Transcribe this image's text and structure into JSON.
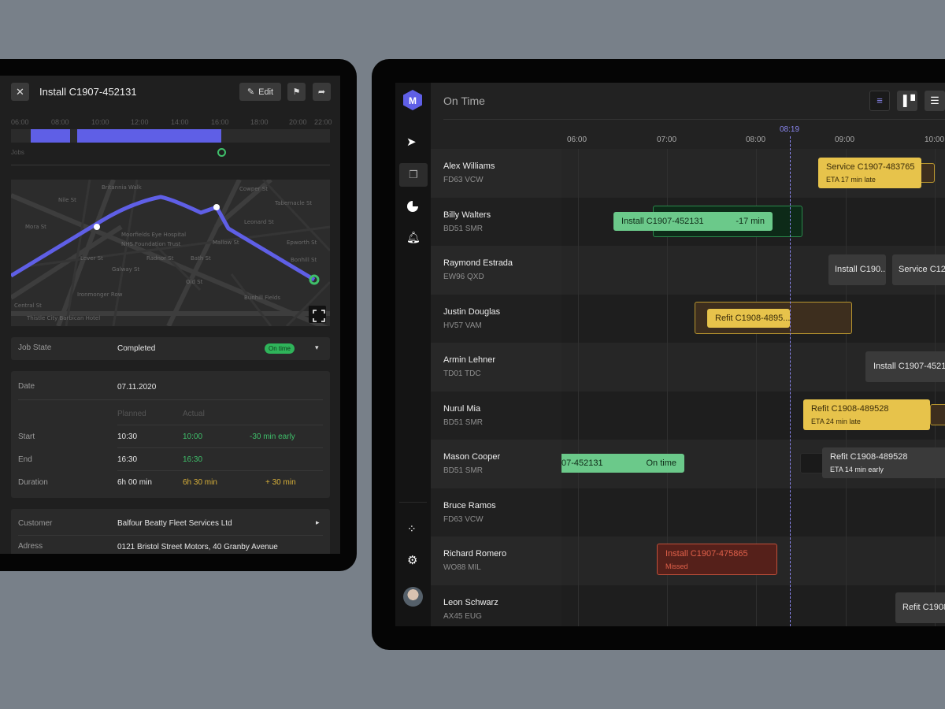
{
  "detail": {
    "title": "Install C1907-452131",
    "edit_label": "Edit",
    "timeline_ticks": [
      "06:00",
      "08:00",
      "10:00",
      "12:00",
      "14:00",
      "16:00",
      "18:00",
      "20:00",
      "22:00"
    ],
    "jobs_label": "Jobs",
    "map_streets": [
      "Britannia Walk",
      "Nile St",
      "Moorfields Eye Hospital",
      "NHS Foundation Trust",
      "Lever St",
      "Galway St",
      "Radnor St",
      "Bath St",
      "Old St",
      "Mallow St",
      "Leonard St",
      "Cowper St",
      "Tabernacle St",
      "Epworth St",
      "Bunhill Fields",
      "Bonhill St",
      "Ironmonger Row",
      "Thistle City Barbican Hotel",
      "Central St",
      "Mora St"
    ],
    "job_state": {
      "label": "Job State",
      "value": "Completed",
      "badge": "On time"
    },
    "date": {
      "label": "Date",
      "value": "07.11.2020"
    },
    "cols": {
      "planned": "Planned",
      "actual": "Actual"
    },
    "times": [
      {
        "label": "Start",
        "planned": "10:30",
        "actual": "10:00",
        "diff": "-30 min early"
      },
      {
        "label": "End",
        "planned": "16:30",
        "actual": "16:30",
        "diff": ""
      },
      {
        "label": "Duration",
        "planned": "6h 00 min",
        "actual": "6h 30 min",
        "diff": "+ 30 min"
      }
    ],
    "customer": {
      "label": "Customer",
      "value": "Balfour Beatty Fleet Services Ltd"
    },
    "address": {
      "label": "Adress",
      "value": "0121 Bristol Street Motors, 40 Granby Avenue"
    }
  },
  "colors": {
    "accent": "#5f5fe6",
    "green": "#3fbf6a",
    "yellow": "#e7c34b",
    "red": "#d0533a"
  },
  "schedule": {
    "logo": "M",
    "title": "On Time",
    "now": "08:19",
    "hours": [
      "06:00",
      "07:00",
      "08:00",
      "09:00",
      "10:00"
    ],
    "drivers": [
      {
        "name": "Alex Williams",
        "plate": "FD63 VCW"
      },
      {
        "name": "Billy Walters",
        "plate": "BD51 SMR"
      },
      {
        "name": "Raymond Estrada",
        "plate": "EW96 QXD"
      },
      {
        "name": "Justin Douglas",
        "plate": "HV57 VAM"
      },
      {
        "name": "Armin Lehner",
        "plate": "TD01 TDC"
      },
      {
        "name": "Nurul Mia",
        "plate": "BD51 SMR"
      },
      {
        "name": "Mason Cooper",
        "plate": "BD51 SMR"
      },
      {
        "name": "Bruce Ramos",
        "plate": "FD63 VCW"
      },
      {
        "name": "Richard Romero",
        "plate": "WO88 MIL"
      },
      {
        "name": "Leon Schwarz",
        "plate": "AX45 EUG"
      }
    ],
    "jobs": [
      {
        "title": "Service C1907-483765",
        "status": "ETA 17 min late"
      },
      {
        "title": "Install C1907-452131",
        "status": "-17 min"
      },
      {
        "title": "Install C190...",
        "status": ""
      },
      {
        "title": "Service C12...",
        "status": ""
      },
      {
        "title": "Refit C1908-4895...",
        "status": ""
      },
      {
        "title": "Install C1907-4521",
        "status": ""
      },
      {
        "title": "Refit C1908-489528",
        "status": "ETA 24 min late"
      },
      {
        "title": "07-452131",
        "status": "On time"
      },
      {
        "title": "Refit C1908-489528",
        "status": "ETA 14 min early"
      },
      {
        "title": "Install C1907-475865",
        "status": "Missed"
      },
      {
        "title": "Refit C1908...",
        "status": ""
      }
    ]
  }
}
